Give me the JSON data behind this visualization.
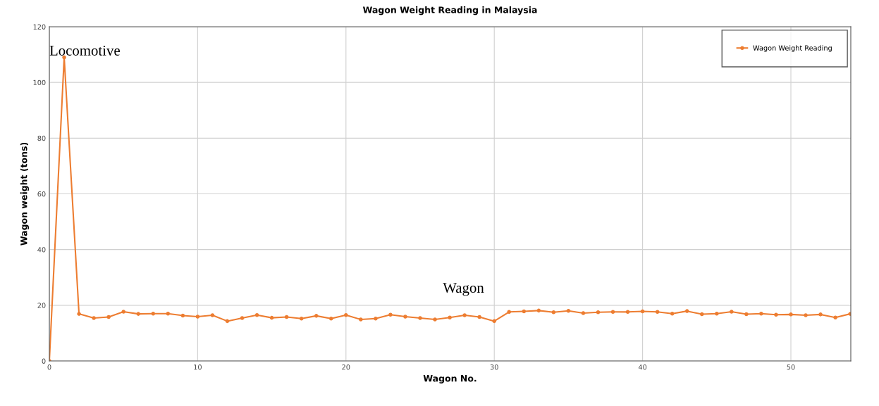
{
  "chart_data": {
    "type": "line",
    "title": "Wagon Weight Reading in Malaysia",
    "xlabel": "Wagon No.",
    "ylabel": "Wagon weight (tons)",
    "x": [
      0,
      1,
      2,
      3,
      4,
      5,
      6,
      7,
      8,
      9,
      10,
      11,
      12,
      13,
      14,
      15,
      16,
      17,
      18,
      19,
      20,
      21,
      22,
      23,
      24,
      25,
      26,
      27,
      28,
      29,
      30,
      31,
      32,
      33,
      34,
      35,
      36,
      37,
      38,
      39,
      40,
      41,
      42,
      43,
      44,
      45,
      46,
      47,
      48,
      49,
      50,
      51,
      52,
      53,
      54
    ],
    "series": [
      {
        "name": "Wagon Weight Reading",
        "color": "#ed7d31",
        "values": [
          0,
          109,
          16.9,
          15.4,
          15.8,
          17.7,
          16.9,
          17.0,
          17.0,
          16.3,
          15.9,
          16.4,
          14.3,
          15.4,
          16.5,
          15.5,
          15.8,
          15.2,
          16.2,
          15.2,
          16.5,
          14.9,
          15.2,
          16.6,
          15.9,
          15.4,
          14.9,
          15.6,
          16.4,
          15.8,
          14.3,
          17.6,
          17.8,
          18.1,
          17.5,
          18.0,
          17.2,
          17.5,
          17.6,
          17.6,
          17.8,
          17.6,
          17.0,
          17.9,
          16.8,
          17.0,
          17.7,
          16.8,
          17.0,
          16.6,
          16.7,
          16.4,
          16.7,
          15.6,
          16.9
        ]
      }
    ],
    "xlim": [
      0,
      54.04
    ],
    "xticks": [
      0,
      10,
      20,
      30,
      40,
      50
    ],
    "ylim": [
      0,
      120
    ],
    "yticks": [
      0,
      20,
      40,
      60,
      80,
      100,
      120
    ],
    "grid": true,
    "legend": "top right",
    "marker": "circle",
    "line_style": "solid",
    "annotations": [
      "Locomotive",
      "Wagon"
    ]
  }
}
